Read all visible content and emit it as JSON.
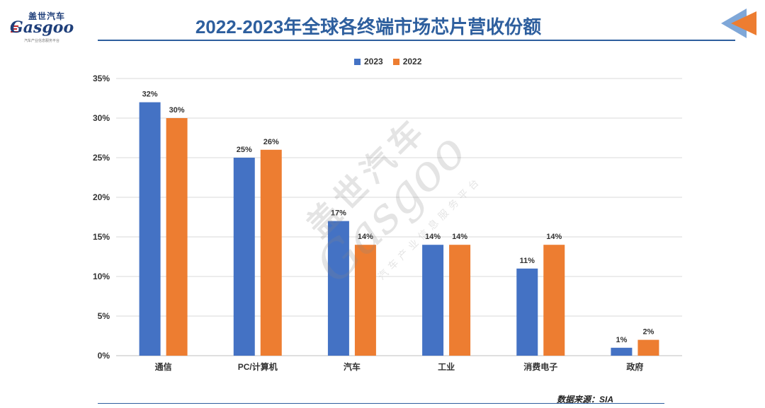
{
  "logo": {
    "cn": "盖世汽车",
    "en": "Gasgoo",
    "sub": "汽车产业信息服务平台"
  },
  "watermark": {
    "cn": "盖世汽车",
    "en": "Gasgoo",
    "sub": "汽车产业信息服务平台"
  },
  "colors": {
    "series_2023": "#4472C4",
    "series_2022": "#ED7D31",
    "title": "#2E5F9E",
    "grid": "#D9D9D9"
  },
  "source_text": "数据来源：SIA",
  "chart_data": {
    "type": "bar",
    "title": "2022-2023年全球各终端市场芯片营收份额",
    "categories": [
      "通信",
      "PC/计算机",
      "汽车",
      "工业",
      "消费电子",
      "政府"
    ],
    "series": [
      {
        "name": "2023",
        "values": [
          32,
          25,
          17,
          14,
          11,
          1
        ]
      },
      {
        "name": "2022",
        "values": [
          30,
          26,
          14,
          14,
          14,
          2
        ]
      }
    ],
    "ylim": [
      0,
      35
    ],
    "yticks": [
      "0%",
      "5%",
      "10%",
      "15%",
      "20%",
      "25%",
      "30%",
      "35%"
    ],
    "value_suffix": "%",
    "grid": true,
    "legend_position": "top-center",
    "xlabel": "",
    "ylabel": ""
  }
}
